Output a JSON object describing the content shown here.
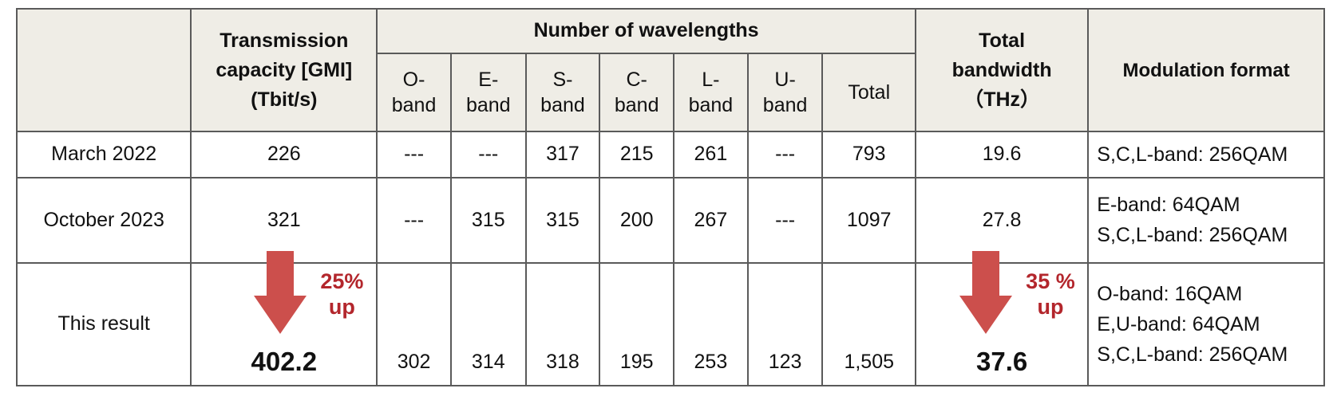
{
  "headers": {
    "capacity": [
      "Transmission",
      "capacity [GMI]",
      "(Tbit/s)"
    ],
    "wavelengths": "Number of wavelengths",
    "bands": [
      [
        "O-",
        "band"
      ],
      [
        "E-",
        "band"
      ],
      [
        "S-",
        "band"
      ],
      [
        "C-",
        "band"
      ],
      [
        "L-",
        "band"
      ],
      [
        "U-",
        "band"
      ]
    ],
    "total": "Total",
    "bandwidth": [
      "Total",
      "bandwidth",
      "（THz）"
    ],
    "modulation": "Modulation format"
  },
  "rows": [
    {
      "label": "March 2022",
      "capacity": "226",
      "bands": [
        "---",
        "---",
        "317",
        "215",
        "261",
        "---"
      ],
      "total": "793",
      "bandwidth": "19.6",
      "modulation": [
        "S,C,L-band: 256QAM"
      ]
    },
    {
      "label": "October 2023",
      "capacity": "321",
      "bands": [
        "---",
        "315",
        "315",
        "200",
        "267",
        "---"
      ],
      "total": "1097",
      "bandwidth": "27.8",
      "modulation": [
        "E-band: 64QAM",
        "S,C,L-band: 256QAM"
      ]
    },
    {
      "label": "This result",
      "capacity": "402.2",
      "bands": [
        "302",
        "314",
        "318",
        "195",
        "253",
        "123"
      ],
      "total": "1,505",
      "bandwidth": "37.6",
      "modulation": [
        "O-band: 16QAM",
        "E,U-band: 64QAM",
        "S,C,L-band: 256QAM"
      ]
    }
  ],
  "annotations": {
    "capacity_increase": [
      "25%",
      "up"
    ],
    "bandwidth_increase": [
      "35 %",
      "up"
    ]
  },
  "colors": {
    "header_bg": "#efede6",
    "arrow": "#cc4f4c",
    "highlight_text": "#b3262c",
    "border": "#5a5a5a"
  }
}
